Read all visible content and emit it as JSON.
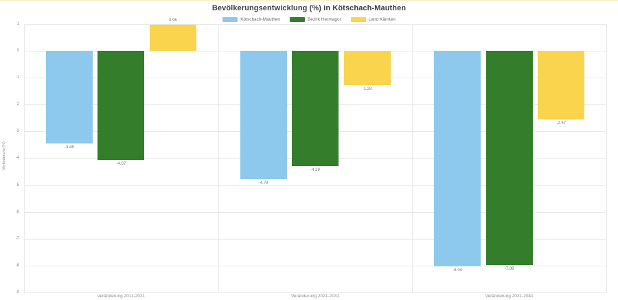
{
  "page": {
    "top_border_color": "#FBF1C7",
    "background": "#ffffff"
  },
  "chart_data": {
    "type": "bar",
    "title": "Bevölkerungsentwicklung (%) in Kötschach-Mauthen",
    "xlabel": "",
    "ylabel": "Veränderung (%)",
    "categories": [
      "Veränderung 2011-2021",
      "Veränderung 2021-2031",
      "Veränderung 2021-2041"
    ],
    "series": [
      {
        "name": "Kötschach-Mauthen",
        "color": "#8DC9EC",
        "values": [
          -3.46,
          -4.79,
          -8.04
        ]
      },
      {
        "name": "Bezirk Hermagor",
        "color": "#337D2B",
        "values": [
          -4.07,
          -4.29,
          -7.98
        ]
      },
      {
        "name": "Land Kärnten",
        "color": "#F9D44C",
        "values": [
          0.96,
          -1.28,
          -2.57
        ]
      }
    ],
    "data_labels": [
      [
        "-3.46",
        "-4.79",
        "-8.04"
      ],
      [
        "-4.07",
        "-4.29",
        "-7.98"
      ],
      [
        "0.96",
        "-1.28",
        "-2.57"
      ]
    ],
    "ylim": [
      -9,
      1
    ],
    "yticks": [
      1,
      0,
      -1,
      -2,
      -3,
      -4,
      -5,
      -6,
      -7,
      -8,
      -9
    ],
    "grid": true,
    "legend_position": "top"
  }
}
